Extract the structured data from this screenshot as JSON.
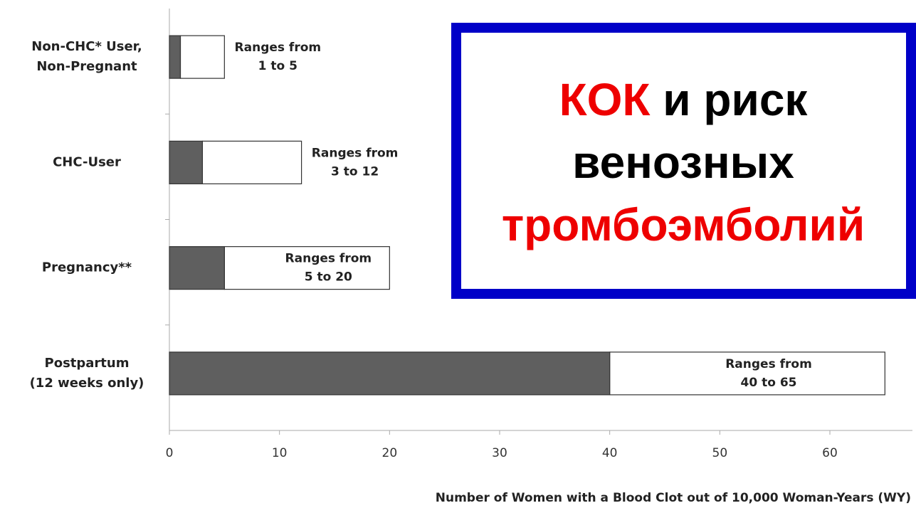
{
  "chart_data": {
    "type": "range_bar",
    "categories": [
      [
        "Non-CHC* User,",
        "Non-Pregnant"
      ],
      [
        "CHC-User"
      ],
      [
        "Pregnancy**"
      ],
      [
        "Postpartum",
        "(12 weeks only)"
      ]
    ],
    "low": [
      1,
      3,
      5,
      40
    ],
    "high": [
      5,
      12,
      20,
      65
    ],
    "value_labels": [
      [
        "Ranges from",
        "1 to 5"
      ],
      [
        "Ranges from",
        "3 to 12"
      ],
      [
        "Ranges from",
        "5 to 20"
      ],
      [
        "Ranges from",
        "40 to 65"
      ]
    ],
    "low_color": "#5f5f5f",
    "high_color": "#ffffff",
    "xlim": [
      0,
      67.5
    ],
    "xticks": [
      0,
      10,
      20,
      30,
      40,
      50,
      60
    ],
    "xlabel": "Number of Women with a Blood Clot out of 10,000  Woman-Years (WY)",
    "annotation": {
      "lines": [
        [
          {
            "text": "КОК",
            "color": "#ee0000"
          },
          {
            "text": " и риск",
            "color": "#000000"
          }
        ],
        [
          {
            "text": "венозных",
            "color": "#000000"
          }
        ],
        [
          {
            "text": "тромбоэмболий",
            "color": "#ee0000"
          }
        ]
      ],
      "border_color": "#0000c8"
    }
  }
}
